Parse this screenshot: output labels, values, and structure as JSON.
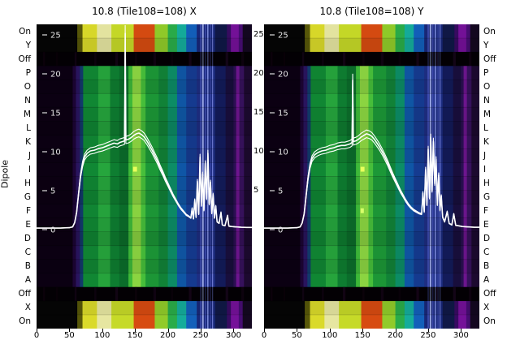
{
  "chart_data": {
    "type": "heatmap",
    "overlay": "line",
    "ylabel": "Dipole",
    "row_labels": [
      "On",
      "Y",
      "Off",
      "P",
      "O",
      "N",
      "M",
      "L",
      "K",
      "J",
      "I",
      "H",
      "G",
      "F",
      "E",
      "D",
      "C",
      "B",
      "A",
      "Off",
      "X",
      "On"
    ],
    "xticks": [
      0,
      50,
      100,
      150,
      200,
      250,
      300
    ],
    "x_range": [
      0,
      328
    ],
    "line_ticks": [
      25,
      20,
      15,
      10,
      5,
      0
    ],
    "between_ticks": [
      25,
      20,
      15,
      10,
      5
    ],
    "panels": [
      {
        "id": "X",
        "title": "10.8 (Tile108=108) X",
        "marks": [
          {
            "row": 10,
            "from": 147,
            "to": 153,
            "color": "#eaff5c"
          }
        ],
        "line": [
          [
            0,
            0.2
          ],
          [
            18,
            0.2
          ],
          [
            36,
            0.2
          ],
          [
            50,
            0.25
          ],
          [
            55,
            0.35
          ],
          [
            58,
            0.9
          ],
          [
            61,
            2.2
          ],
          [
            64,
            4.6
          ],
          [
            67,
            6.9
          ],
          [
            70,
            8.4
          ],
          [
            73,
            9.3
          ],
          [
            77,
            9.8
          ],
          [
            82,
            10.1
          ],
          [
            88,
            10.2
          ],
          [
            94,
            10.4
          ],
          [
            100,
            10.5
          ],
          [
            106,
            10.7
          ],
          [
            112,
            10.9
          ],
          [
            118,
            11.1
          ],
          [
            123,
            11.0
          ],
          [
            127,
            11.2
          ],
          [
            131,
            11.3
          ],
          [
            134,
            11.4
          ],
          [
            135,
            25.2
          ],
          [
            136,
            11.5
          ],
          [
            140,
            11.6
          ],
          [
            144,
            11.8
          ],
          [
            148,
            12.1
          ],
          [
            152,
            12.3
          ],
          [
            156,
            12.4
          ],
          [
            160,
            12.2
          ],
          [
            164,
            11.9
          ],
          [
            168,
            11.4
          ],
          [
            172,
            10.8
          ],
          [
            176,
            10.2
          ],
          [
            180,
            9.5
          ],
          [
            184,
            8.8
          ],
          [
            188,
            8.0
          ],
          [
            192,
            7.3
          ],
          [
            196,
            6.5
          ],
          [
            200,
            5.8
          ],
          [
            204,
            5.1
          ],
          [
            208,
            4.4
          ],
          [
            212,
            3.8
          ],
          [
            216,
            3.2
          ],
          [
            220,
            2.7
          ],
          [
            224,
            2.3
          ],
          [
            228,
            1.9
          ],
          [
            232,
            1.7
          ],
          [
            235,
            1.5
          ],
          [
            237,
            2.7
          ],
          [
            239,
            1.4
          ],
          [
            241,
            3.8
          ],
          [
            243,
            1.6
          ],
          [
            245,
            6.2
          ],
          [
            247,
            2.0
          ],
          [
            249,
            9.3
          ],
          [
            251,
            3.1
          ],
          [
            253,
            7.1
          ],
          [
            255,
            2.5
          ],
          [
            257,
            8.5
          ],
          [
            259,
            4.0
          ],
          [
            261,
            9.8
          ],
          [
            263,
            3.3
          ],
          [
            265,
            6.1
          ],
          [
            267,
            2.1
          ],
          [
            269,
            4.5
          ],
          [
            271,
            1.5
          ],
          [
            273,
            3.0
          ],
          [
            275,
            1.0
          ],
          [
            278,
            0.8
          ],
          [
            281,
            2.2
          ],
          [
            283,
            0.6
          ],
          [
            287,
            0.5
          ],
          [
            291,
            1.8
          ],
          [
            293,
            0.45
          ],
          [
            297,
            0.4
          ],
          [
            303,
            0.35
          ],
          [
            312,
            0.3
          ],
          [
            320,
            0.28
          ],
          [
            328,
            0.28
          ]
        ]
      },
      {
        "id": "Y",
        "title": "10.8 (Tile108=108) Y",
        "marks": [
          {
            "row": 10,
            "from": 147,
            "to": 153,
            "color": "#eaff5c"
          },
          {
            "row": 13,
            "from": 147,
            "to": 152,
            "color": "#d8ff6a"
          }
        ],
        "line": [
          [
            0,
            0.2
          ],
          [
            18,
            0.2
          ],
          [
            36,
            0.2
          ],
          [
            50,
            0.25
          ],
          [
            55,
            0.35
          ],
          [
            58,
            0.85
          ],
          [
            61,
            2.0
          ],
          [
            64,
            4.3
          ],
          [
            67,
            6.6
          ],
          [
            70,
            8.2
          ],
          [
            73,
            9.1
          ],
          [
            77,
            9.6
          ],
          [
            82,
            9.9
          ],
          [
            88,
            10.1
          ],
          [
            94,
            10.2
          ],
          [
            100,
            10.4
          ],
          [
            106,
            10.5
          ],
          [
            112,
            10.7
          ],
          [
            118,
            10.8
          ],
          [
            123,
            10.8
          ],
          [
            127,
            10.9
          ],
          [
            131,
            11.0
          ],
          [
            134,
            11.2
          ],
          [
            135,
            19.2
          ],
          [
            136,
            11.3
          ],
          [
            140,
            11.4
          ],
          [
            144,
            11.6
          ],
          [
            148,
            11.9
          ],
          [
            152,
            12.1
          ],
          [
            156,
            12.3
          ],
          [
            160,
            12.2
          ],
          [
            164,
            12.0
          ],
          [
            168,
            11.6
          ],
          [
            172,
            11.1
          ],
          [
            176,
            10.6
          ],
          [
            180,
            10.0
          ],
          [
            184,
            9.3
          ],
          [
            188,
            8.6
          ],
          [
            192,
            7.8
          ],
          [
            196,
            7.0
          ],
          [
            200,
            6.3
          ],
          [
            204,
            5.6
          ],
          [
            208,
            4.9
          ],
          [
            212,
            4.3
          ],
          [
            216,
            3.7
          ],
          [
            220,
            3.2
          ],
          [
            224,
            2.8
          ],
          [
            228,
            2.5
          ],
          [
            232,
            2.3
          ],
          [
            236,
            2.1
          ],
          [
            240,
            2.0
          ],
          [
            242,
            4.7
          ],
          [
            244,
            2.3
          ],
          [
            246,
            7.7
          ],
          [
            248,
            3.2
          ],
          [
            250,
            10.3
          ],
          [
            252,
            4.1
          ],
          [
            254,
            11.8
          ],
          [
            256,
            5.0
          ],
          [
            258,
            11.3
          ],
          [
            260,
            5.9
          ],
          [
            262,
            9.0
          ],
          [
            264,
            3.2
          ],
          [
            266,
            7.0
          ],
          [
            268,
            2.5
          ],
          [
            270,
            4.3
          ],
          [
            272,
            1.6
          ],
          [
            275,
            1.0
          ],
          [
            279,
            2.3
          ],
          [
            282,
            0.8
          ],
          [
            286,
            0.6
          ],
          [
            289,
            2.0
          ],
          [
            292,
            0.55
          ],
          [
            296,
            0.5
          ],
          [
            302,
            0.4
          ],
          [
            310,
            0.35
          ],
          [
            320,
            0.3
          ],
          [
            328,
            0.3
          ]
        ]
      }
    ],
    "colors": {
      "trace": "#ffffff",
      "inner_tick_text": "#e8e8e8",
      "off_base": "#070109",
      "dipole_stripes": [
        [
          0,
          55,
          "#0c0113"
        ],
        [
          55,
          60,
          "#1d0536"
        ],
        [
          60,
          66,
          "#2a1560"
        ],
        [
          66,
          71,
          "#123c6e"
        ],
        [
          71,
          94,
          "#118a35"
        ],
        [
          94,
          112,
          "#27a83e"
        ],
        [
          112,
          126,
          "#0f8032"
        ],
        [
          126,
          140,
          "#0c702c"
        ],
        [
          140,
          146,
          "#3fbc3a"
        ],
        [
          146,
          159,
          "#8ed943"
        ],
        [
          159,
          166,
          "#48c23c"
        ],
        [
          166,
          186,
          "#1d9a38"
        ],
        [
          186,
          200,
          "#128539"
        ],
        [
          200,
          214,
          "#0d8f68"
        ],
        [
          214,
          228,
          "#1058a8"
        ],
        [
          228,
          244,
          "#163c92"
        ],
        [
          244,
          272,
          "#1f2f86"
        ],
        [
          272,
          288,
          "#141c5c"
        ],
        [
          288,
          300,
          "#190f3e"
        ],
        [
          300,
          304,
          "#2c1054"
        ],
        [
          304,
          309,
          "#6f1690"
        ],
        [
          309,
          316,
          "#38125e"
        ],
        [
          316,
          328,
          "#1d0a30"
        ]
      ],
      "edge_stripes": [
        [
          0,
          62,
          "#060606"
        ],
        [
          62,
          70,
          "#5c5c0a"
        ],
        [
          70,
          92,
          "#e3e32c"
        ],
        [
          92,
          114,
          "#f0f0a8"
        ],
        [
          114,
          148,
          "#cfe32a"
        ],
        [
          148,
          180,
          "#e04f12"
        ],
        [
          180,
          200,
          "#97d42c"
        ],
        [
          200,
          214,
          "#2cb44c"
        ],
        [
          214,
          228,
          "#16b4a2"
        ],
        [
          228,
          244,
          "#1464c2"
        ],
        [
          244,
          272,
          "#1a2a7e"
        ],
        [
          272,
          290,
          "#111a4a"
        ],
        [
          290,
          296,
          "#3a0c66"
        ],
        [
          296,
          308,
          "#7a12a0"
        ],
        [
          308,
          314,
          "#4a0e78"
        ],
        [
          314,
          328,
          "#150822"
        ]
      ],
      "off_speckles": [
        [
          10,
          13,
          "#1a0418"
        ],
        [
          30,
          32,
          "#150313"
        ],
        [
          58,
          61,
          "#220726"
        ],
        [
          88,
          91,
          "#1c0520"
        ],
        [
          120,
          124,
          "#260a2c"
        ],
        [
          150,
          153,
          "#1a0518"
        ],
        [
          178,
          182,
          "#220826"
        ],
        [
          205,
          208,
          "#160414"
        ],
        [
          232,
          236,
          "#2a0a30"
        ],
        [
          262,
          265,
          "#1e0622"
        ],
        [
          288,
          292,
          "#2c0c34"
        ],
        [
          312,
          316,
          "#1e0620"
        ]
      ],
      "bright_columns": [
        [
          249.3,
          250.8,
          "#5a68dc",
          0.85
        ],
        [
          252.3,
          254.6,
          "#aab6f6",
          0.95
        ],
        [
          256.4,
          257.9,
          "#5560cc",
          0.8
        ],
        [
          259.9,
          261.9,
          "#8a99ee",
          0.9
        ],
        [
          264.3,
          265.8,
          "#4a55bc",
          0.75
        ],
        [
          267.4,
          268.9,
          "#7e8ae6",
          0.85
        ]
      ]
    }
  }
}
